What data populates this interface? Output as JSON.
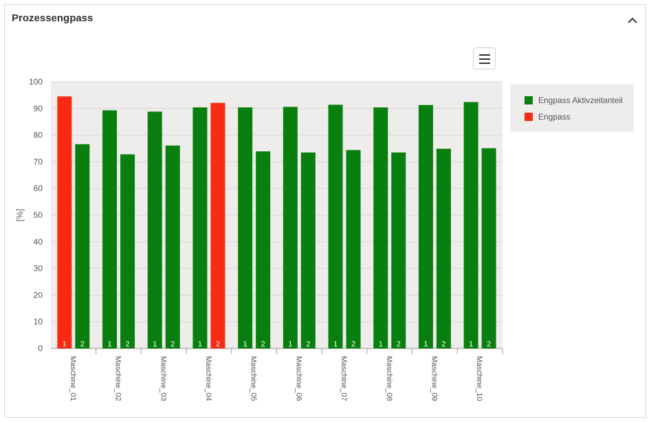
{
  "panel": {
    "title": "Prozessengpass"
  },
  "icons": {
    "collapse": "chevron-up-icon",
    "menu": "hamburger-menu-icon"
  },
  "colors": {
    "green": "#087f0e",
    "red": "#fa2a13",
    "plot_bg": "#eeedeb",
    "legend_bg": "#eeedeb"
  },
  "legend": {
    "items": [
      {
        "label": "Engpass Aktivzeitanteil",
        "color": "#087f0e"
      },
      {
        "label": "Engpass",
        "color": "#fa2a13"
      }
    ]
  },
  "chart_data": {
    "type": "bar",
    "title": "",
    "xlabel": "",
    "ylabel": "[%]",
    "ylim": [
      0,
      100
    ],
    "yticks": [
      0,
      10,
      20,
      30,
      40,
      50,
      60,
      70,
      80,
      90,
      100
    ],
    "grid": true,
    "legend_position": "right",
    "categories": [
      "Maschine_01",
      "Maschine_02",
      "Maschine_03",
      "Maschine_04",
      "Maschine_05",
      "Maschine_06",
      "Maschine_07",
      "Maschine_08",
      "Maschine_09",
      "Maschine_10"
    ],
    "bar_labels": [
      "1",
      "2"
    ],
    "series": [
      {
        "values": [
          94.5,
          89.3,
          88.8,
          90.4,
          90.4,
          90.6,
          91.4,
          90.4,
          91.3,
          92.4
        ],
        "bottleneck": [
          true,
          false,
          false,
          false,
          false,
          false,
          false,
          false,
          false,
          false
        ]
      },
      {
        "values": [
          76.6,
          72.8,
          76.1,
          92.1,
          73.9,
          73.5,
          74.4,
          73.5,
          74.9,
          75.1
        ],
        "bottleneck": [
          false,
          false,
          false,
          true,
          false,
          false,
          false,
          false,
          false,
          false
        ]
      }
    ]
  }
}
